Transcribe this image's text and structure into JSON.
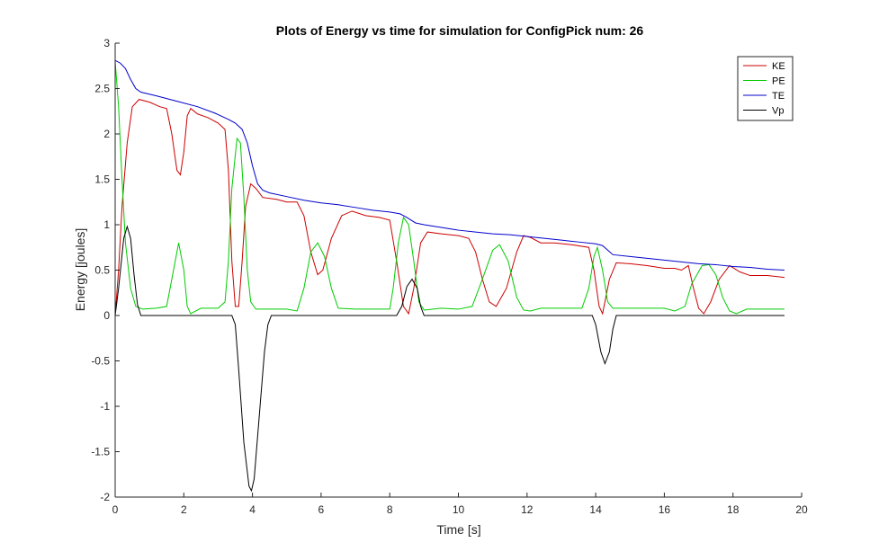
{
  "chart_data": {
    "type": "line",
    "title": "Plots of Energy vs time for simulation for ConfigPick num: 26",
    "xlabel": "Time [s]",
    "ylabel": "Energy [joules]",
    "xlim": [
      0,
      20
    ],
    "ylim": [
      -2,
      3
    ],
    "xticks": [
      0,
      2,
      4,
      6,
      8,
      10,
      12,
      14,
      16,
      18,
      20
    ],
    "yticks": [
      -2,
      -1.5,
      -1,
      -0.5,
      0,
      0.5,
      1,
      1.5,
      2,
      2.5,
      3
    ],
    "xtick_labels": [
      "0",
      "2",
      "4",
      "6",
      "8",
      "10",
      "12",
      "14",
      "16",
      "18",
      "20"
    ],
    "ytick_labels": [
      "-2",
      "-1.5",
      "-1",
      "-0.5",
      "0",
      "0.5",
      "1",
      "1.5",
      "2",
      "2.5",
      "3"
    ],
    "grid": false,
    "legend_position": "top-right",
    "series": [
      {
        "name": "KE",
        "color": "#cc0000",
        "points": [
          [
            0,
            0
          ],
          [
            0.1,
            0.5
          ],
          [
            0.2,
            1.2
          ],
          [
            0.35,
            1.9
          ],
          [
            0.5,
            2.3
          ],
          [
            0.7,
            2.38
          ],
          [
            1.0,
            2.35
          ],
          [
            1.3,
            2.3
          ],
          [
            1.5,
            2.28
          ],
          [
            1.65,
            2.0
          ],
          [
            1.8,
            1.6
          ],
          [
            1.9,
            1.55
          ],
          [
            2.0,
            1.8
          ],
          [
            2.1,
            2.2
          ],
          [
            2.2,
            2.28
          ],
          [
            2.4,
            2.22
          ],
          [
            2.7,
            2.18
          ],
          [
            3.0,
            2.12
          ],
          [
            3.2,
            2.05
          ],
          [
            3.3,
            1.6
          ],
          [
            3.4,
            0.6
          ],
          [
            3.5,
            0.1
          ],
          [
            3.6,
            0.1
          ],
          [
            3.7,
            0.6
          ],
          [
            3.8,
            1.2
          ],
          [
            3.95,
            1.45
          ],
          [
            4.1,
            1.4
          ],
          [
            4.3,
            1.3
          ],
          [
            4.7,
            1.28
          ],
          [
            5.0,
            1.25
          ],
          [
            5.3,
            1.25
          ],
          [
            5.5,
            1.1
          ],
          [
            5.7,
            0.7
          ],
          [
            5.9,
            0.45
          ],
          [
            6.05,
            0.5
          ],
          [
            6.3,
            0.85
          ],
          [
            6.6,
            1.1
          ],
          [
            6.9,
            1.15
          ],
          [
            7.3,
            1.1
          ],
          [
            7.7,
            1.08
          ],
          [
            8.0,
            1.05
          ],
          [
            8.2,
            0.6
          ],
          [
            8.4,
            0.1
          ],
          [
            8.55,
            0.02
          ],
          [
            8.7,
            0.3
          ],
          [
            8.9,
            0.8
          ],
          [
            9.1,
            0.92
          ],
          [
            9.5,
            0.9
          ],
          [
            10.0,
            0.88
          ],
          [
            10.3,
            0.85
          ],
          [
            10.5,
            0.7
          ],
          [
            10.7,
            0.4
          ],
          [
            10.9,
            0.15
          ],
          [
            11.1,
            0.1
          ],
          [
            11.4,
            0.3
          ],
          [
            11.7,
            0.7
          ],
          [
            11.9,
            0.88
          ],
          [
            12.1,
            0.86
          ],
          [
            12.4,
            0.8
          ],
          [
            12.8,
            0.8
          ],
          [
            13.3,
            0.78
          ],
          [
            13.8,
            0.75
          ],
          [
            13.95,
            0.5
          ],
          [
            14.1,
            0.1
          ],
          [
            14.2,
            0.02
          ],
          [
            14.4,
            0.4
          ],
          [
            14.6,
            0.58
          ],
          [
            15.0,
            0.57
          ],
          [
            15.5,
            0.55
          ],
          [
            16.0,
            0.52
          ],
          [
            16.3,
            0.52
          ],
          [
            16.5,
            0.5
          ],
          [
            16.7,
            0.55
          ],
          [
            16.85,
            0.3
          ],
          [
            17.0,
            0.08
          ],
          [
            17.15,
            0.02
          ],
          [
            17.35,
            0.15
          ],
          [
            17.6,
            0.4
          ],
          [
            17.9,
            0.55
          ],
          [
            18.2,
            0.48
          ],
          [
            18.5,
            0.44
          ],
          [
            19.0,
            0.44
          ],
          [
            19.5,
            0.42
          ]
        ]
      },
      {
        "name": "PE",
        "color": "#00cc00",
        "points": [
          [
            0,
            2.8
          ],
          [
            0.1,
            2.3
          ],
          [
            0.2,
            1.5
          ],
          [
            0.3,
            0.8
          ],
          [
            0.45,
            0.3
          ],
          [
            0.6,
            0.1
          ],
          [
            0.8,
            0.07
          ],
          [
            1.2,
            0.08
          ],
          [
            1.5,
            0.1
          ],
          [
            1.7,
            0.5
          ],
          [
            1.85,
            0.8
          ],
          [
            2.0,
            0.5
          ],
          [
            2.1,
            0.1
          ],
          [
            2.2,
            0.02
          ],
          [
            2.5,
            0.08
          ],
          [
            3.0,
            0.08
          ],
          [
            3.2,
            0.15
          ],
          [
            3.3,
            0.6
          ],
          [
            3.4,
            1.4
          ],
          [
            3.55,
            1.95
          ],
          [
            3.65,
            1.9
          ],
          [
            3.75,
            1.3
          ],
          [
            3.85,
            0.5
          ],
          [
            3.95,
            0.15
          ],
          [
            4.1,
            0.07
          ],
          [
            4.5,
            0.07
          ],
          [
            5.0,
            0.07
          ],
          [
            5.3,
            0.05
          ],
          [
            5.5,
            0.3
          ],
          [
            5.7,
            0.7
          ],
          [
            5.9,
            0.8
          ],
          [
            6.1,
            0.65
          ],
          [
            6.3,
            0.3
          ],
          [
            6.5,
            0.08
          ],
          [
            7.0,
            0.07
          ],
          [
            7.5,
            0.07
          ],
          [
            8.0,
            0.07
          ],
          [
            8.1,
            0.3
          ],
          [
            8.25,
            0.8
          ],
          [
            8.4,
            1.08
          ],
          [
            8.55,
            1.0
          ],
          [
            8.7,
            0.6
          ],
          [
            8.85,
            0.15
          ],
          [
            9.0,
            0.06
          ],
          [
            9.5,
            0.08
          ],
          [
            10.0,
            0.07
          ],
          [
            10.4,
            0.1
          ],
          [
            10.7,
            0.4
          ],
          [
            11.0,
            0.72
          ],
          [
            11.2,
            0.78
          ],
          [
            11.45,
            0.6
          ],
          [
            11.7,
            0.2
          ],
          [
            11.9,
            0.06
          ],
          [
            12.1,
            0.05
          ],
          [
            12.4,
            0.08
          ],
          [
            13.0,
            0.08
          ],
          [
            13.6,
            0.08
          ],
          [
            13.8,
            0.3
          ],
          [
            13.95,
            0.65
          ],
          [
            14.05,
            0.75
          ],
          [
            14.2,
            0.5
          ],
          [
            14.35,
            0.15
          ],
          [
            14.5,
            0.08
          ],
          [
            15.0,
            0.08
          ],
          [
            15.5,
            0.08
          ],
          [
            16.0,
            0.08
          ],
          [
            16.3,
            0.05
          ],
          [
            16.6,
            0.1
          ],
          [
            16.8,
            0.35
          ],
          [
            17.1,
            0.55
          ],
          [
            17.3,
            0.56
          ],
          [
            17.5,
            0.45
          ],
          [
            17.7,
            0.2
          ],
          [
            17.9,
            0.05
          ],
          [
            18.1,
            0.02
          ],
          [
            18.4,
            0.07
          ],
          [
            19.0,
            0.07
          ],
          [
            19.5,
            0.07
          ]
        ]
      },
      {
        "name": "TE",
        "color": "#0000cc",
        "points": [
          [
            0,
            2.81
          ],
          [
            0.15,
            2.78
          ],
          [
            0.3,
            2.72
          ],
          [
            0.45,
            2.6
          ],
          [
            0.6,
            2.5
          ],
          [
            0.75,
            2.46
          ],
          [
            1.2,
            2.42
          ],
          [
            1.8,
            2.36
          ],
          [
            2.4,
            2.3
          ],
          [
            2.9,
            2.23
          ],
          [
            3.3,
            2.16
          ],
          [
            3.5,
            2.12
          ],
          [
            3.7,
            2.05
          ],
          [
            3.85,
            1.9
          ],
          [
            4.0,
            1.65
          ],
          [
            4.15,
            1.45
          ],
          [
            4.3,
            1.38
          ],
          [
            4.5,
            1.35
          ],
          [
            5.0,
            1.31
          ],
          [
            5.5,
            1.27
          ],
          [
            6.0,
            1.24
          ],
          [
            6.5,
            1.22
          ],
          [
            7.0,
            1.19
          ],
          [
            7.5,
            1.16
          ],
          [
            8.0,
            1.14
          ],
          [
            8.3,
            1.12
          ],
          [
            8.5,
            1.08
          ],
          [
            8.75,
            1.02
          ],
          [
            9.0,
            1.0
          ],
          [
            9.5,
            0.97
          ],
          [
            10.0,
            0.94
          ],
          [
            10.5,
            0.92
          ],
          [
            11.0,
            0.9
          ],
          [
            11.5,
            0.89
          ],
          [
            12.0,
            0.87
          ],
          [
            12.5,
            0.85
          ],
          [
            13.0,
            0.83
          ],
          [
            13.5,
            0.81
          ],
          [
            14.0,
            0.79
          ],
          [
            14.2,
            0.77
          ],
          [
            14.35,
            0.72
          ],
          [
            14.5,
            0.67
          ],
          [
            15.0,
            0.65
          ],
          [
            15.5,
            0.63
          ],
          [
            16.0,
            0.61
          ],
          [
            16.5,
            0.59
          ],
          [
            17.0,
            0.57
          ],
          [
            17.5,
            0.56
          ],
          [
            18.0,
            0.54
          ],
          [
            18.5,
            0.53
          ],
          [
            19.0,
            0.51
          ],
          [
            19.5,
            0.5
          ]
        ]
      },
      {
        "name": "Vp",
        "color": "#000000",
        "points": [
          [
            0,
            0
          ],
          [
            0.1,
            0.3
          ],
          [
            0.25,
            0.85
          ],
          [
            0.35,
            0.98
          ],
          [
            0.45,
            0.85
          ],
          [
            0.55,
            0.45
          ],
          [
            0.65,
            0.12
          ],
          [
            0.75,
            0
          ],
          [
            1.0,
            0
          ],
          [
            2.0,
            0
          ],
          [
            3.0,
            0
          ],
          [
            3.4,
            0
          ],
          [
            3.5,
            -0.1
          ],
          [
            3.6,
            -0.6
          ],
          [
            3.75,
            -1.4
          ],
          [
            3.9,
            -1.88
          ],
          [
            3.97,
            -1.93
          ],
          [
            4.05,
            -1.8
          ],
          [
            4.2,
            -1.1
          ],
          [
            4.35,
            -0.4
          ],
          [
            4.45,
            -0.1
          ],
          [
            4.55,
            0
          ],
          [
            5.0,
            0
          ],
          [
            6.0,
            0
          ],
          [
            7.0,
            0
          ],
          [
            8.0,
            0
          ],
          [
            8.2,
            0
          ],
          [
            8.35,
            0.1
          ],
          [
            8.5,
            0.32
          ],
          [
            8.65,
            0.4
          ],
          [
            8.8,
            0.3
          ],
          [
            8.9,
            0.1
          ],
          [
            9.0,
            0
          ],
          [
            10.0,
            0
          ],
          [
            11.0,
            0
          ],
          [
            12.0,
            0
          ],
          [
            13.0,
            0
          ],
          [
            13.9,
            0
          ],
          [
            14.0,
            -0.1
          ],
          [
            14.15,
            -0.4
          ],
          [
            14.27,
            -0.53
          ],
          [
            14.4,
            -0.4
          ],
          [
            14.5,
            -0.15
          ],
          [
            14.6,
            0
          ],
          [
            15.0,
            0
          ],
          [
            16.0,
            0
          ],
          [
            17.0,
            0
          ],
          [
            18.0,
            0
          ],
          [
            19.0,
            0
          ],
          [
            19.5,
            0
          ]
        ]
      }
    ]
  }
}
